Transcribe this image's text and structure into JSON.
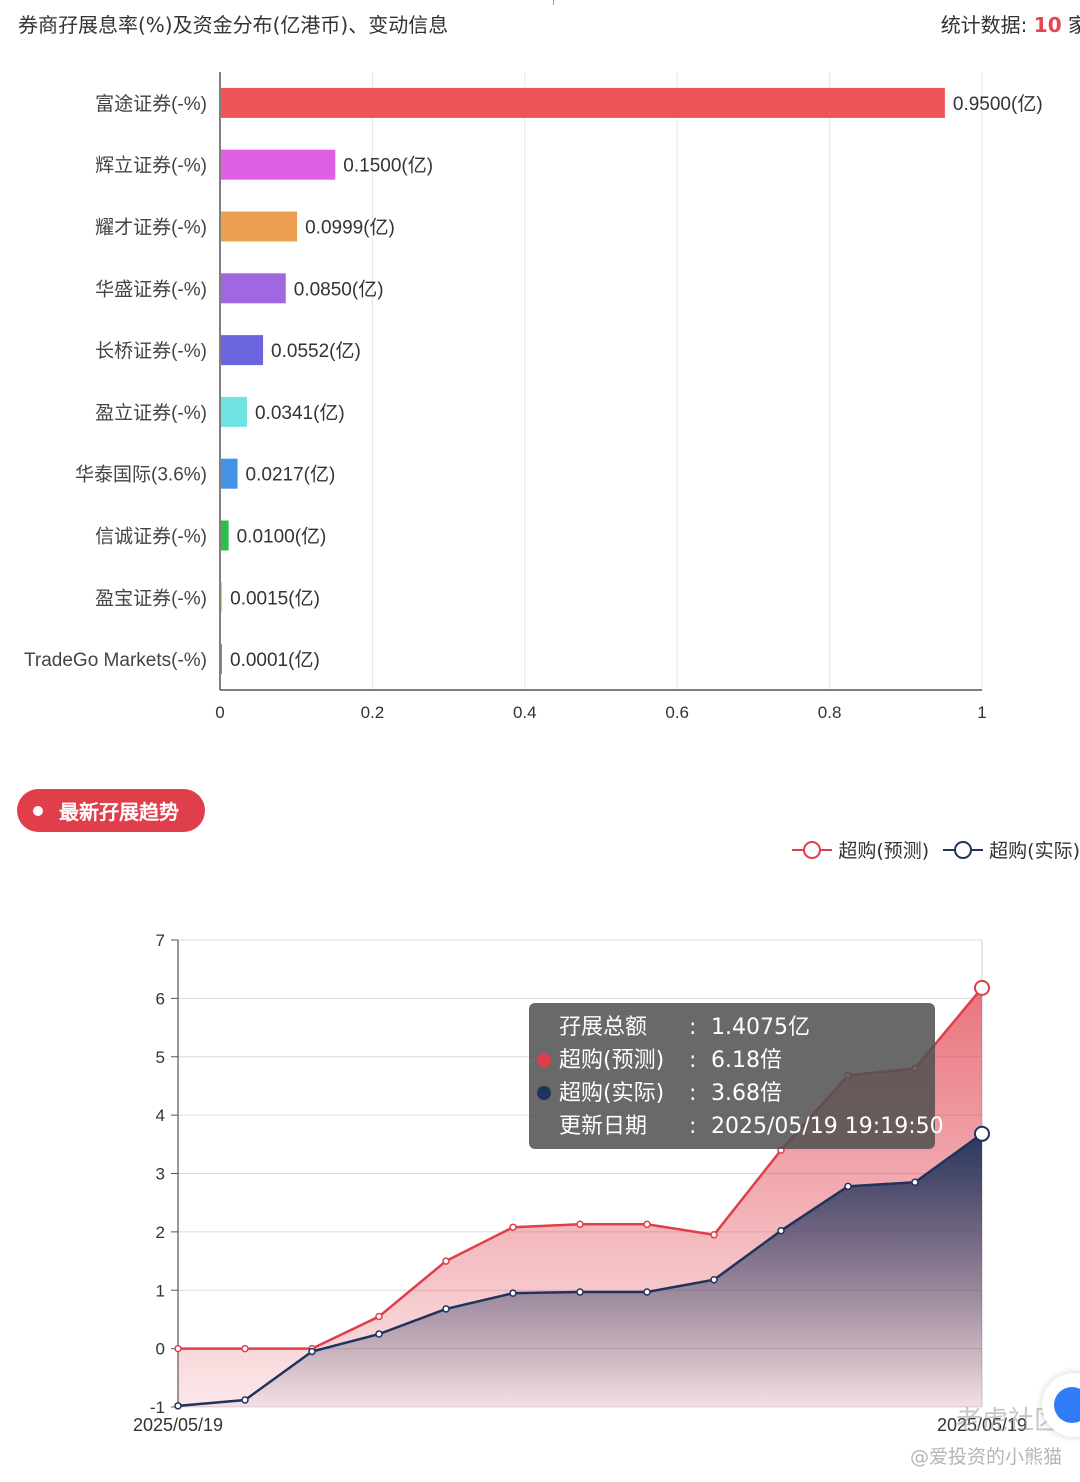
{
  "header": {
    "title": "券商孖展息率(%)及资金分布(亿港币)、变动信息",
    "stat_label": "统计数据: ",
    "stat_count": "10",
    "stat_unit": "家"
  },
  "chart_data": [
    {
      "type": "bar",
      "orientation": "horizontal",
      "categories": [
        "富途证券(-%)",
        "辉立证券(-%)",
        "耀才证券(-%)",
        "华盛证券(-%)",
        "长桥证券(-%)",
        "盈立证券(-%)",
        "华泰国际(3.6%)",
        "信诚证券(-%)",
        "盈宝证券(-%)",
        "TradeGo Markets(-%)"
      ],
      "values": [
        0.95,
        0.15,
        0.0999,
        0.085,
        0.0552,
        0.0341,
        0.0217,
        0.01,
        0.0015,
        0.0001
      ],
      "data_labels": [
        "0.9500(亿)",
        "0.1500(亿)",
        "0.0999(亿)",
        "0.0850(亿)",
        "0.0552(亿)",
        "0.0341(亿)",
        "0.0217(亿)",
        "0.0100(亿)",
        "0.0015(亿)",
        "0.0001(亿)"
      ],
      "colors": [
        "#ee5458",
        "#e060e3",
        "#ec9f51",
        "#a366e1",
        "#6b66e0",
        "#6ee3e1",
        "#4393e5",
        "#2ebd4f",
        "#f5d44a",
        "#888888"
      ],
      "xlim": [
        0,
        1
      ],
      "xticks": [
        "0",
        "0.2",
        "0.4",
        "0.6",
        "0.8",
        "1"
      ],
      "grid": true
    },
    {
      "type": "area",
      "series": [
        {
          "name": "超购(预测)",
          "color": "#e03e4b",
          "values": [
            0,
            0,
            0,
            0.55,
            1.5,
            2.08,
            2.13,
            2.13,
            1.95,
            3.4,
            4.68,
            4.8,
            6.18
          ]
        },
        {
          "name": "超购(实际)",
          "color": "#1f335c",
          "values": [
            -0.98,
            -0.88,
            -0.05,
            0.25,
            0.68,
            0.95,
            0.97,
            0.97,
            1.18,
            2.02,
            2.78,
            2.85,
            3.68
          ]
        }
      ],
      "x_labels": [
        "2025/05/19",
        "2025/05/19"
      ],
      "ylim": [
        -1,
        7
      ],
      "yticks": [
        "-1",
        "0",
        "1",
        "2",
        "3",
        "4",
        "5",
        "6",
        "7"
      ],
      "grid": true,
      "legend_position": "top-right"
    }
  ],
  "trend": {
    "section_label": "最新孖展趋势"
  },
  "tooltip": {
    "rows": [
      {
        "label": "孖展总额",
        "value": "1.4075亿",
        "color": ""
      },
      {
        "label": "超购(预测)",
        "value": "6.18倍",
        "color": "#e03e4b"
      },
      {
        "label": "超购(实际)",
        "value": "3.68倍",
        "color": "#1f335c"
      },
      {
        "label": "更新日期",
        "value": "2025/05/19 19:19:50",
        "color": ""
      }
    ],
    "colon": ":"
  },
  "watermark": {
    "site": "老虎社区",
    "author": "@爱投资的小熊猫"
  }
}
